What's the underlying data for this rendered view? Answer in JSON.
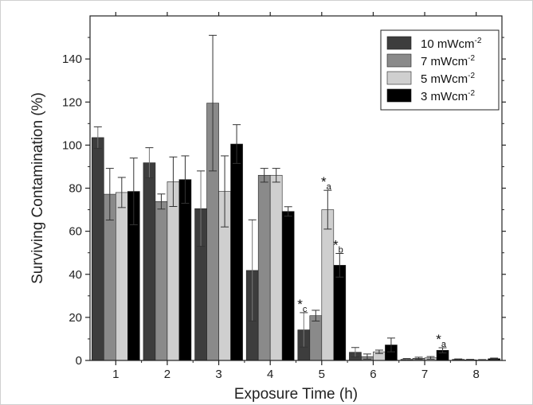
{
  "chart_data": {
    "type": "bar",
    "xlabel": "Exposure Time (h)",
    "ylabel": "Surviving Contamination (%)",
    "categories": [
      "1",
      "2",
      "3",
      "4",
      "5",
      "6",
      "7",
      "8"
    ],
    "ylim": [
      0,
      160
    ],
    "yticks": [
      "0",
      "20",
      "40",
      "60",
      "80",
      "100",
      "120",
      "140"
    ],
    "legend_position": "top-right",
    "legend_unit": "mWcm",
    "legend_exponent": "-2",
    "series": [
      {
        "name": "10",
        "color": "#3d3d3d",
        "values": [
          103.5,
          91.8,
          70.5,
          41.8,
          14.2,
          3.8,
          0.5,
          0.5
        ],
        "errors": [
          5,
          7,
          17.5,
          23.5,
          8,
          2.2,
          0.4,
          0.2
        ]
      },
      {
        "name": "7",
        "color": "#8a8a8a",
        "values": [
          77.2,
          73.8,
          119.5,
          86.0,
          20.8,
          1.8,
          1.0,
          0.3
        ],
        "errors": [
          12,
          3.5,
          31.5,
          3.2,
          2.5,
          1.2,
          0.5,
          0.2
        ]
      },
      {
        "name": "5",
        "color": "#cfcfcf",
        "values": [
          78.0,
          83.0,
          78.5,
          86.0,
          70.0,
          4.0,
          1.2,
          0.2
        ],
        "errors": [
          7,
          11.5,
          16.5,
          3.2,
          9,
          0.8,
          0.6,
          0.2
        ]
      },
      {
        "name": "3",
        "color": "#000000",
        "values": [
          78.5,
          84.0,
          100.5,
          69.2,
          44.2,
          7.2,
          4.7,
          0.8
        ],
        "errors": [
          15.5,
          11,
          9,
          2.2,
          5.5,
          3.2,
          1.2,
          0.3
        ]
      }
    ],
    "annotations": [
      {
        "category": "5",
        "series": "10",
        "symbol": "*",
        "sub": "c"
      },
      {
        "category": "5",
        "series": "5",
        "symbol": "*",
        "sub": "a"
      },
      {
        "category": "5",
        "series": "3",
        "symbol": "*",
        "sub": "b"
      },
      {
        "category": "7",
        "series": "3",
        "symbol": "*",
        "sub": "a"
      }
    ]
  }
}
